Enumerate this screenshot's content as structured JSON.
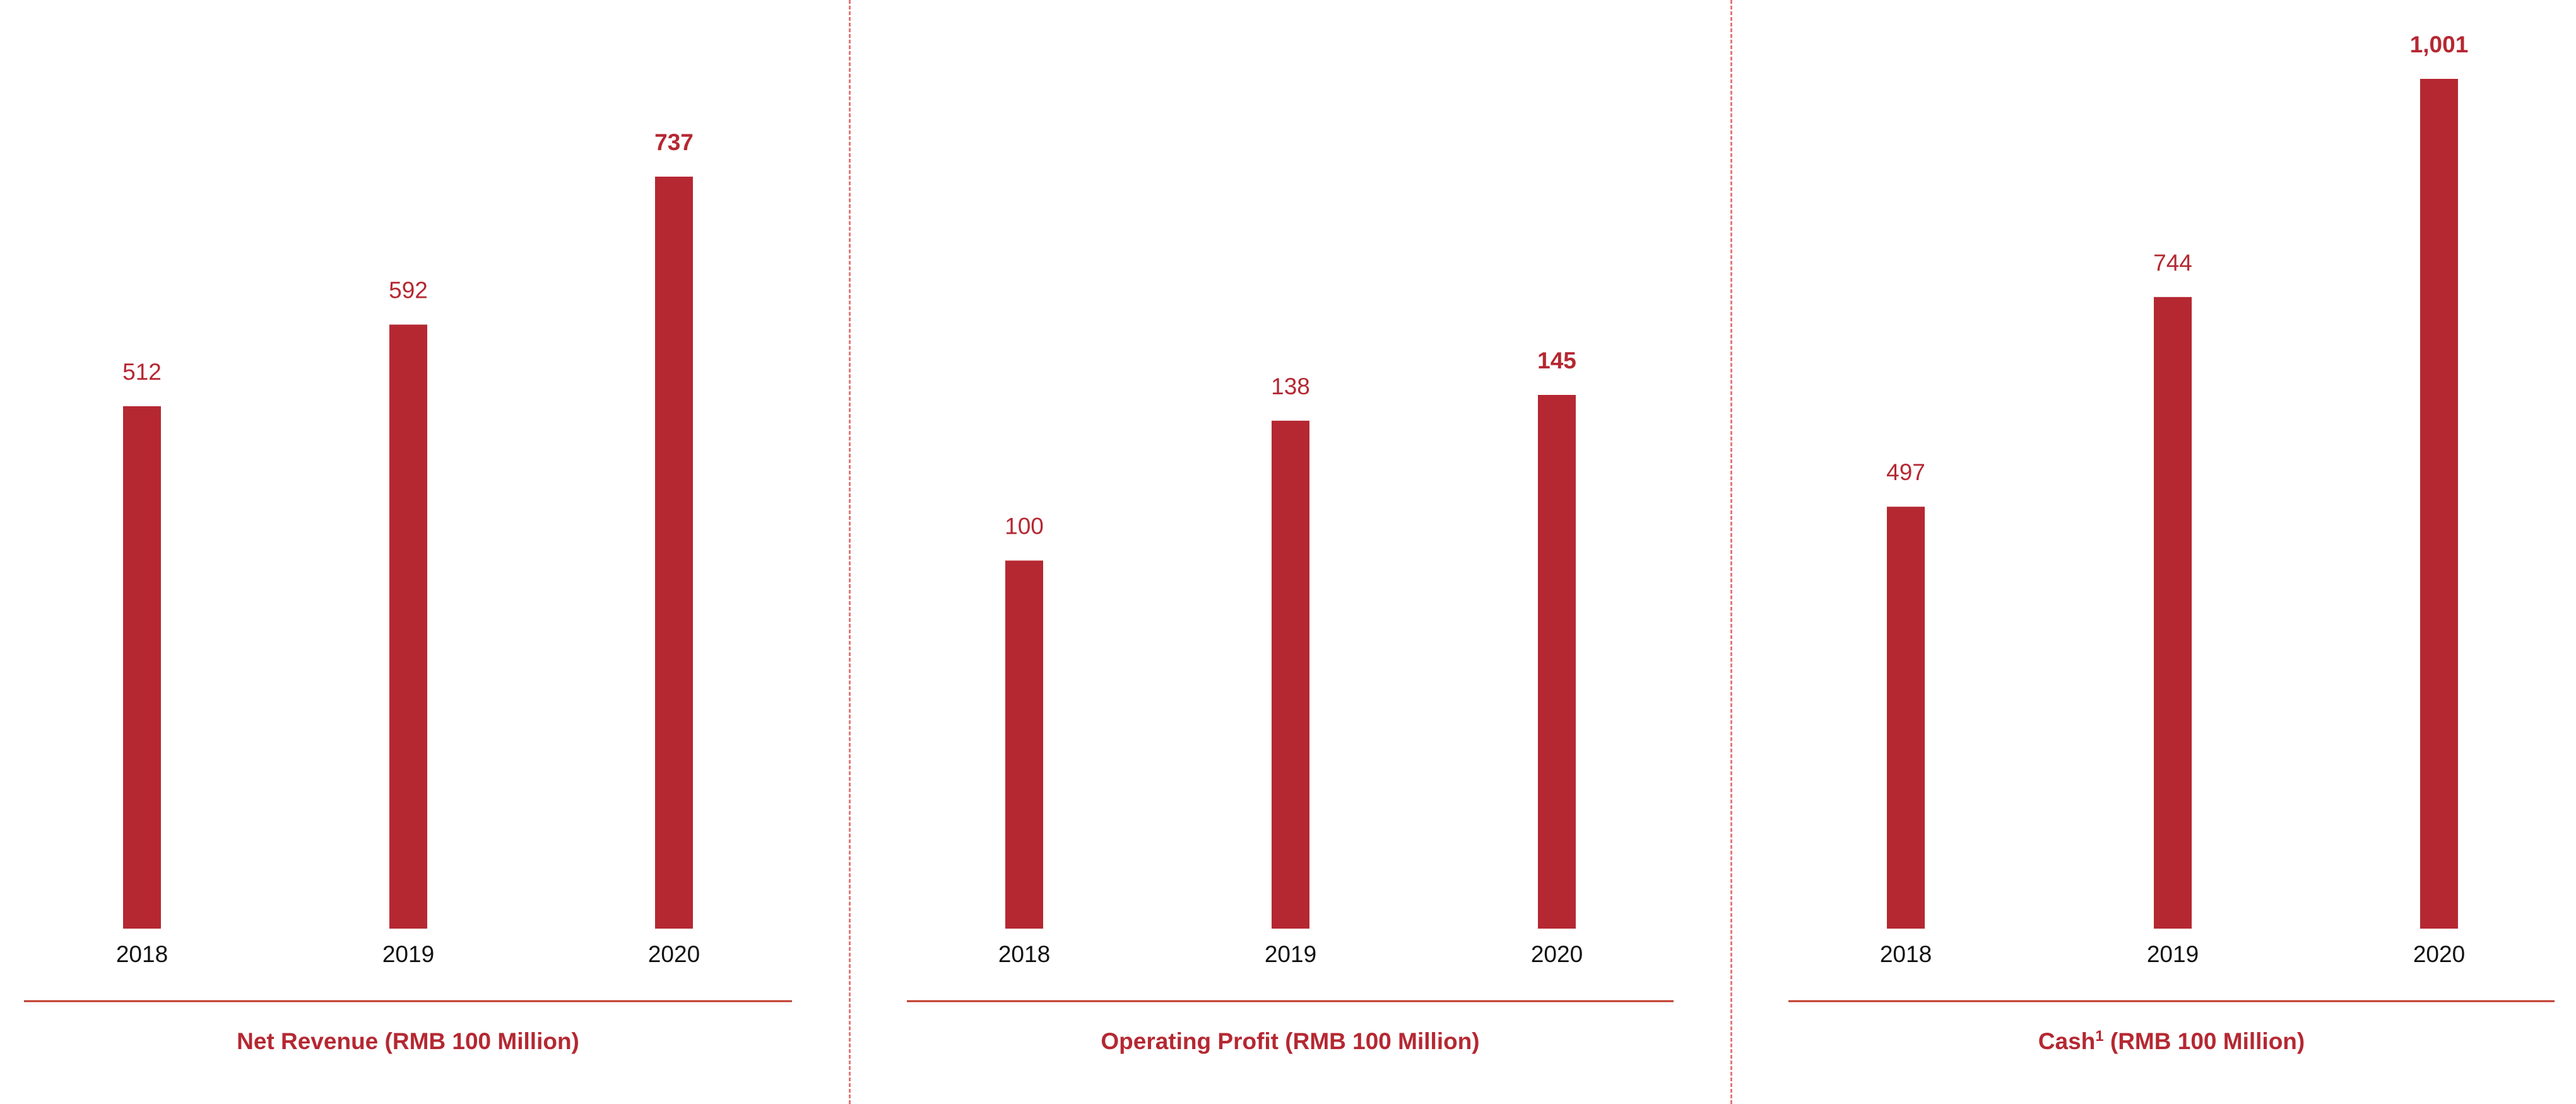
{
  "colors": {
    "bar": "#b52832",
    "value_label": "#b52832",
    "axis_label": "#111111",
    "baseline": "#c0392b",
    "separator": "#e07a7a"
  },
  "chart_data": [
    {
      "type": "bar",
      "title": "Net Revenue (RMB 100 Million)",
      "title_main": "Net Revenue",
      "title_sup": "",
      "title_rest": " (RMB 100 Million)",
      "categories": [
        "2018",
        "2019",
        "2020"
      ],
      "values": [
        512,
        592,
        737
      ],
      "value_labels": [
        "512",
        "592",
        "737"
      ],
      "highlight_index": 2,
      "ylim": [
        0,
        737
      ],
      "grid": false
    },
    {
      "type": "bar",
      "title": "Operating Profit (RMB 100 Million)",
      "title_main": "Operating Profit",
      "title_sup": "",
      "title_rest": " (RMB 100 Million)",
      "categories": [
        "2018",
        "2019",
        "2020"
      ],
      "values": [
        100,
        138,
        145
      ],
      "value_labels": [
        "100",
        "138",
        "145"
      ],
      "highlight_index": 2,
      "ylim": [
        0,
        145
      ],
      "grid": false
    },
    {
      "type": "bar",
      "title": "Cash1 (RMB 100 Million)",
      "title_main": "Cash",
      "title_sup": "1",
      "title_rest": " (RMB 100 Million)",
      "categories": [
        "2018",
        "2019",
        "2020"
      ],
      "values": [
        497,
        744,
        1001
      ],
      "value_labels": [
        "497",
        "744",
        "1,001"
      ],
      "highlight_index": 2,
      "ylim": [
        0,
        1001
      ],
      "grid": false
    }
  ]
}
